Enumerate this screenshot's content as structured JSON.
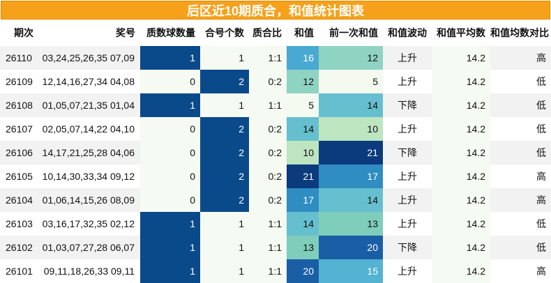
{
  "title": "后区近10期质合，和值统计图表",
  "headers": [
    "期次",
    "奖号",
    "质数球数量",
    "合号个数",
    "质合比",
    "和值",
    "前一次和值",
    "和值波动",
    "和值平均数",
    "和值均数对比"
  ],
  "colors": {
    "title_bg": "#f7a11a",
    "row_alt": "#f2f2f2",
    "prime_one": "#0b4a8a",
    "prime_zero": "#f5faf2",
    "composite_two": "#0b4a8a",
    "composite_one": "#f5faf2",
    "ratio_bg": "#f5faf2",
    "avg_bg": "#f5faf2",
    "sum_scale": {
      "5": "#f4faf0",
      "10": "#bde5c0",
      "12": "#8fd3c3",
      "13": "#7fcdbb",
      "14": "#66bfcf",
      "15": "#54b2d3",
      "16": "#4aa9d2",
      "17": "#2f8dc2",
      "20": "#1a5ea6",
      "21": "#0b3a7d"
    }
  },
  "rows": [
    {
      "period": "26110",
      "numbers": "03,24,25,26,35 07,09",
      "prime": "1",
      "composite": "1",
      "ratio": "1:1",
      "sum": "16",
      "prev_sum": "12",
      "wave": "上升",
      "avg": "14.2",
      "compare": "高"
    },
    {
      "period": "26109",
      "numbers": "12,14,16,27,34 04,08",
      "prime": "0",
      "composite": "2",
      "ratio": "0:2",
      "sum": "12",
      "prev_sum": "5",
      "wave": "上升",
      "avg": "14.2",
      "compare": "低"
    },
    {
      "period": "26108",
      "numbers": "01,05,07,21,35 01,04",
      "prime": "1",
      "composite": "1",
      "ratio": "1:1",
      "sum": "5",
      "prev_sum": "14",
      "wave": "下降",
      "avg": "14.2",
      "compare": "低"
    },
    {
      "period": "26107",
      "numbers": "02,05,07,14,22 04,10",
      "prime": "0",
      "composite": "2",
      "ratio": "0:2",
      "sum": "14",
      "prev_sum": "10",
      "wave": "上升",
      "avg": "14.2",
      "compare": "低"
    },
    {
      "period": "26106",
      "numbers": "14,17,21,25,28 04,06",
      "prime": "0",
      "composite": "2",
      "ratio": "0:2",
      "sum": "10",
      "prev_sum": "21",
      "wave": "下降",
      "avg": "14.2",
      "compare": "低"
    },
    {
      "period": "26105",
      "numbers": "10,14,30,33,34 09,12",
      "prime": "0",
      "composite": "2",
      "ratio": "0:2",
      "sum": "21",
      "prev_sum": "17",
      "wave": "上升",
      "avg": "14.2",
      "compare": "高"
    },
    {
      "period": "26104",
      "numbers": "01,06,14,15,26 08,09",
      "prime": "0",
      "composite": "2",
      "ratio": "0:2",
      "sum": "17",
      "prev_sum": "14",
      "wave": "上升",
      "avg": "14.2",
      "compare": "高"
    },
    {
      "period": "26103",
      "numbers": "03,16,17,32,35 02,12",
      "prime": "1",
      "composite": "1",
      "ratio": "1:1",
      "sum": "14",
      "prev_sum": "13",
      "wave": "上升",
      "avg": "14.2",
      "compare": "低"
    },
    {
      "period": "26102",
      "numbers": "01,03,07,27,28 06,07",
      "prime": "1",
      "composite": "1",
      "ratio": "1:1",
      "sum": "13",
      "prev_sum": "20",
      "wave": "下降",
      "avg": "14.2",
      "compare": "低"
    },
    {
      "period": "26101",
      "numbers": "09,11,18,26,33 09,11",
      "prime": "1",
      "composite": "1",
      "ratio": "1:1",
      "sum": "20",
      "prev_sum": "15",
      "wave": "上升",
      "avg": "14.2",
      "compare": "高"
    }
  ]
}
